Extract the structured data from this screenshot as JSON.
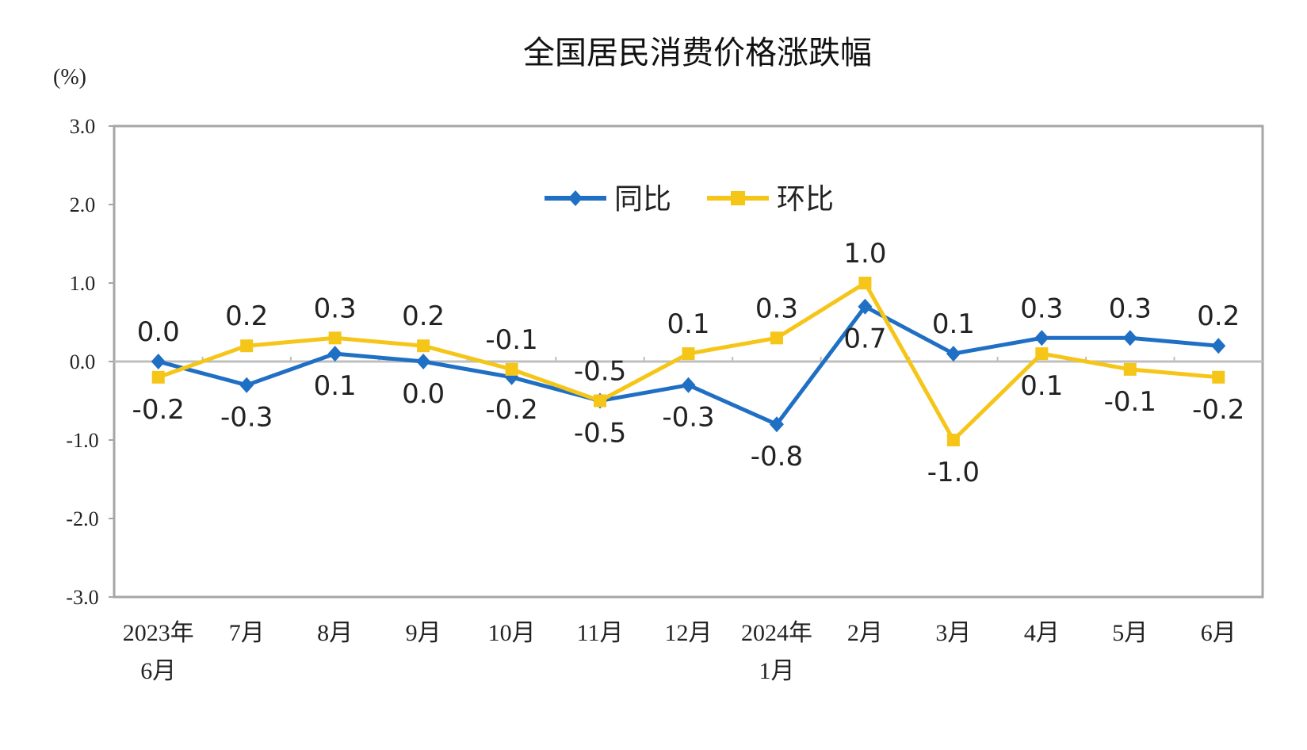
{
  "chart_data": {
    "type": "line",
    "title": "全国居民消费价格涨跌幅",
    "ylabel": "(%)",
    "ylim": [
      -3.0,
      3.0
    ],
    "yticks": [
      "3.0",
      "2.0",
      "1.0",
      "0.0",
      "-1.0",
      "-2.0",
      "-3.0"
    ],
    "ytick_values": [
      3,
      2,
      1,
      0,
      -1,
      -2,
      -3
    ],
    "categories": [
      [
        "2023年",
        "6月"
      ],
      [
        "7月"
      ],
      [
        "8月"
      ],
      [
        "9月"
      ],
      [
        "10月"
      ],
      [
        "11月"
      ],
      [
        "12月"
      ],
      [
        "2024年",
        "1月"
      ],
      [
        "2月"
      ],
      [
        "3月"
      ],
      [
        "4月"
      ],
      [
        "5月"
      ],
      [
        "6月"
      ]
    ],
    "grid": false,
    "legend_placement": "top-center",
    "series": [
      {
        "name": "同比",
        "color": "#1f6fc4",
        "marker": "diamond",
        "values": [
          0.0,
          -0.3,
          0.1,
          0.0,
          -0.2,
          -0.5,
          -0.3,
          -0.8,
          0.7,
          0.1,
          0.3,
          0.3,
          0.2
        ]
      },
      {
        "name": "环比",
        "color": "#f5c518",
        "marker": "square",
        "values": [
          -0.2,
          0.2,
          0.3,
          0.2,
          -0.1,
          -0.5,
          0.1,
          0.3,
          1.0,
          -1.0,
          0.1,
          -0.1,
          -0.2
        ]
      }
    ]
  }
}
